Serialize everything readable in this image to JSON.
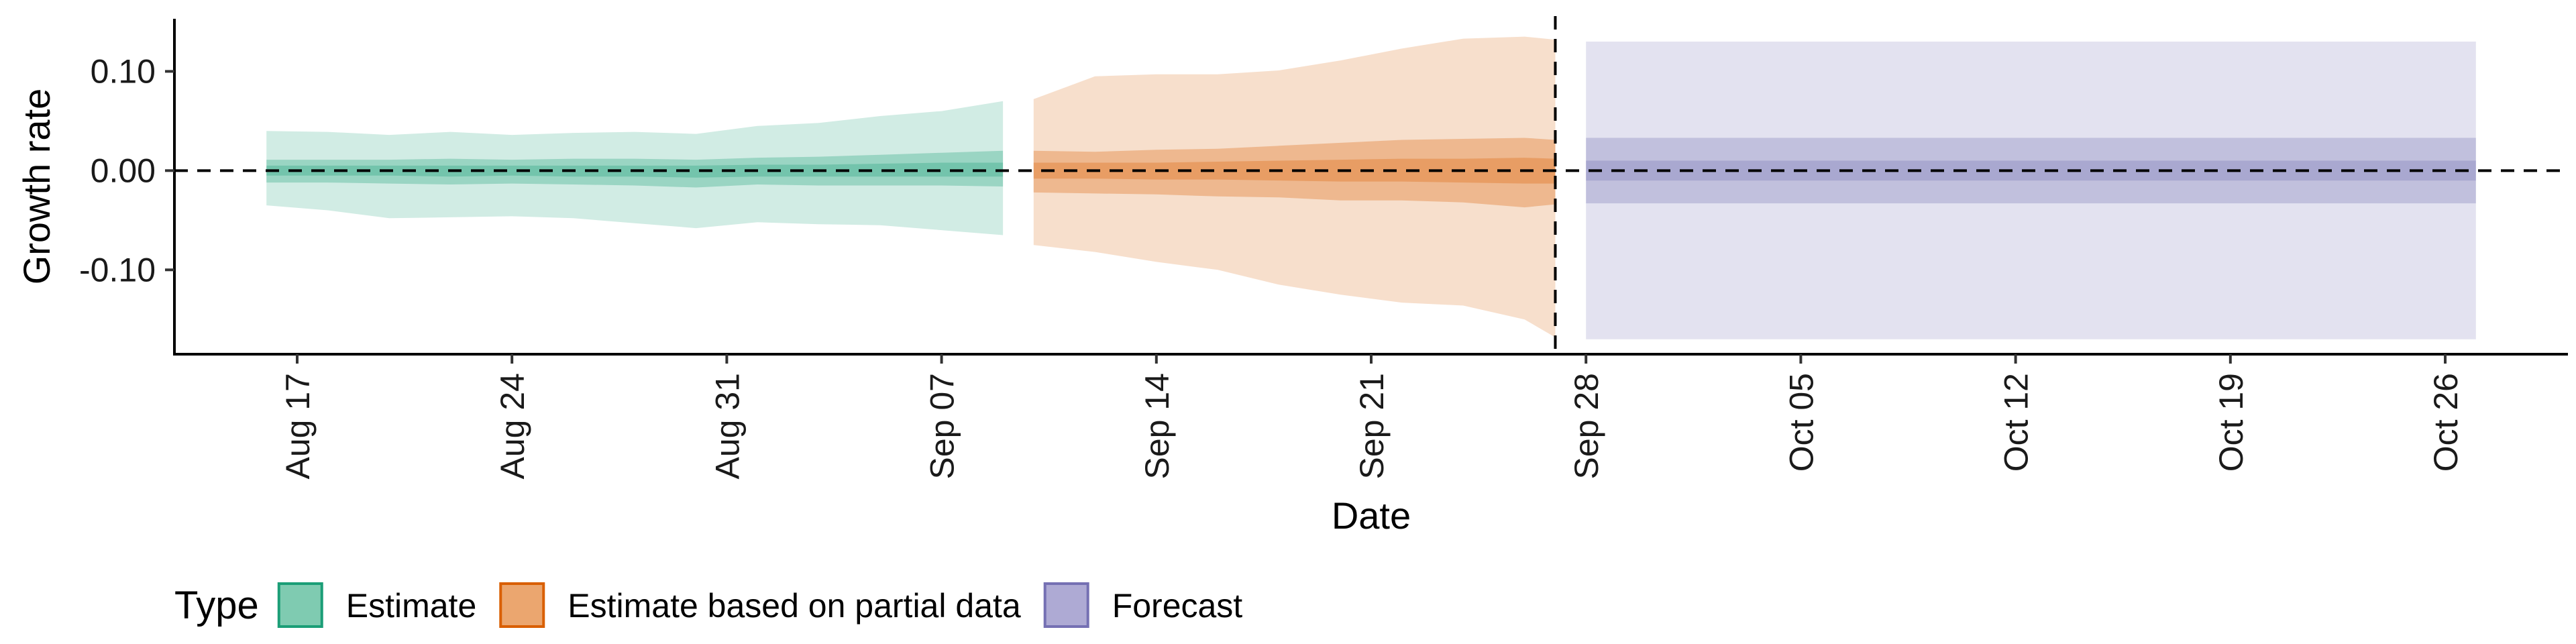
{
  "chart_data": {
    "type": "area",
    "xlabel": "Date",
    "ylabel": "Growth rate",
    "ylim": [
      -0.185,
      0.153
    ],
    "y_ticks": [
      {
        "value": 0.1,
        "label": "0.10"
      },
      {
        "value": 0.0,
        "label": "0.00"
      },
      {
        "value": -0.1,
        "label": "-0.10"
      }
    ],
    "x_ticks": [
      {
        "date": "2020-08-17",
        "label": "Aug 17"
      },
      {
        "date": "2020-08-24",
        "label": "Aug 24"
      },
      {
        "date": "2020-08-31",
        "label": "Aug 31"
      },
      {
        "date": "2020-09-07",
        "label": "Sep 07"
      },
      {
        "date": "2020-09-14",
        "label": "Sep 14"
      },
      {
        "date": "2020-09-21",
        "label": "Sep 21"
      },
      {
        "date": "2020-09-28",
        "label": "Sep 28"
      },
      {
        "date": "2020-10-05",
        "label": "Oct 05"
      },
      {
        "date": "2020-10-12",
        "label": "Oct 12"
      },
      {
        "date": "2020-10-19",
        "label": "Oct 19"
      },
      {
        "date": "2020-10-26",
        "label": "Oct 26"
      }
    ],
    "xlim": [
      "2020-08-13",
      "2020-10-30"
    ],
    "reference_hline": 0,
    "reference_vline": "2020-09-27",
    "grid": false,
    "legend": {
      "title": "Type",
      "position": "bottom-left",
      "items": [
        {
          "label": "Estimate",
          "fill": "#7fcbb1",
          "border": "#1b9e77"
        },
        {
          "label": "Estimate based on partial data",
          "fill": "#eba66f",
          "border": "#d95f02"
        },
        {
          "label": "Forecast",
          "fill": "#aeaad4",
          "border": "#7570b3"
        }
      ]
    },
    "series": [
      {
        "name": "Estimate",
        "color": "#1b9e77",
        "x": [
          "2020-08-16",
          "2020-08-18",
          "2020-08-20",
          "2020-08-22",
          "2020-08-24",
          "2020-08-26",
          "2020-08-28",
          "2020-08-30",
          "2020-09-01",
          "2020-09-03",
          "2020-09-05",
          "2020-09-07",
          "2020-09-09"
        ],
        "lower90": [
          -0.035,
          -0.04,
          -0.048,
          -0.047,
          -0.046,
          -0.048,
          -0.053,
          -0.058,
          -0.052,
          -0.054,
          -0.055,
          -0.06,
          -0.065
        ],
        "upper90": [
          0.04,
          0.039,
          0.036,
          0.039,
          0.036,
          0.038,
          0.039,
          0.037,
          0.045,
          0.048,
          0.055,
          0.06,
          0.07
        ],
        "lower50": [
          -0.012,
          -0.012,
          -0.013,
          -0.014,
          -0.013,
          -0.014,
          -0.015,
          -0.017,
          -0.014,
          -0.015,
          -0.015,
          -0.015,
          -0.016
        ],
        "upper50": [
          0.011,
          0.011,
          0.011,
          0.012,
          0.011,
          0.012,
          0.012,
          0.011,
          0.013,
          0.014,
          0.016,
          0.018,
          0.02
        ],
        "lower20": [
          -0.005,
          -0.005,
          -0.005,
          -0.006,
          -0.005,
          -0.006,
          -0.006,
          -0.007,
          -0.006,
          -0.006,
          -0.006,
          -0.006,
          -0.006
        ],
        "upper20": [
          0.005,
          0.005,
          0.005,
          0.005,
          0.005,
          0.005,
          0.005,
          0.005,
          0.006,
          0.006,
          0.007,
          0.008,
          0.008
        ]
      },
      {
        "name": "Estimate based on partial data",
        "color": "#d95f02",
        "x": [
          "2020-09-10",
          "2020-09-12",
          "2020-09-14",
          "2020-09-16",
          "2020-09-18",
          "2020-09-20",
          "2020-09-22",
          "2020-09-24",
          "2020-09-26",
          "2020-09-27"
        ],
        "lower90": [
          -0.075,
          -0.082,
          -0.092,
          -0.1,
          -0.115,
          -0.125,
          -0.133,
          -0.136,
          -0.15,
          -0.168
        ],
        "upper90": [
          0.072,
          0.095,
          0.097,
          0.097,
          0.101,
          0.111,
          0.123,
          0.133,
          0.135,
          0.132
        ],
        "lower50": [
          -0.022,
          -0.023,
          -0.024,
          -0.026,
          -0.027,
          -0.03,
          -0.03,
          -0.032,
          -0.037,
          -0.034
        ],
        "upper50": [
          0.02,
          0.019,
          0.021,
          0.022,
          0.025,
          0.028,
          0.031,
          0.032,
          0.033,
          0.031
        ],
        "lower20": [
          -0.008,
          -0.008,
          -0.009,
          -0.009,
          -0.01,
          -0.011,
          -0.011,
          -0.012,
          -0.013,
          -0.013
        ],
        "upper20": [
          0.008,
          0.008,
          0.008,
          0.009,
          0.01,
          0.011,
          0.012,
          0.012,
          0.013,
          0.012
        ]
      },
      {
        "name": "Forecast",
        "color": "#7570b3",
        "x": [
          "2020-09-28",
          "2020-10-27"
        ],
        "lower90": [
          -0.17,
          -0.17
        ],
        "upper90": [
          0.13,
          0.13
        ],
        "lower50": [
          -0.033,
          -0.033
        ],
        "upper50": [
          0.033,
          0.033
        ],
        "lower20": [
          -0.01,
          -0.01
        ],
        "upper20": [
          0.01,
          0.01
        ]
      }
    ]
  }
}
